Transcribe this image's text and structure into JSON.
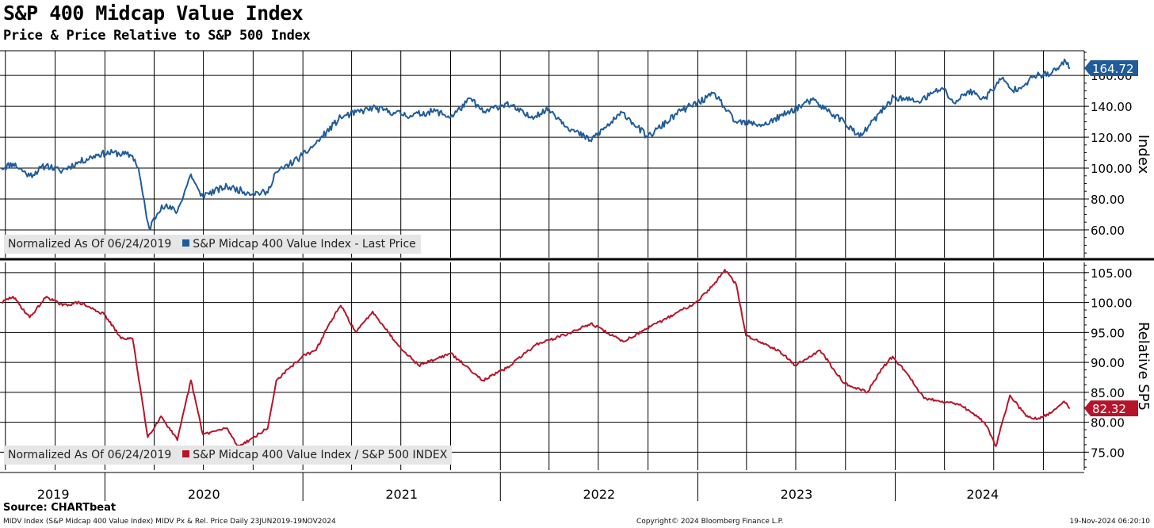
{
  "header": {
    "title": "S&P 400 Midcap Value Index",
    "subtitle": "Price & Price Relative to S&P 500 Index"
  },
  "footer": {
    "source": "Source: CHARTbeat",
    "left_note": "MIDV Index (S&P Midcap 400 Value Index) MIDV Px & Rel. Price  Daily 23JUN2019-19NOV2024",
    "center_note": "Copyright© 2024 Bloomberg Finance L.P.",
    "right_note": "19-Nov-2024 06:20:10"
  },
  "colors": {
    "price": "#1f5c99",
    "relative": "#b5152b",
    "grid": "#000000",
    "legend_bg": "#e6e6e6"
  },
  "chart_data": [
    {
      "type": "line",
      "ylabel": "Index",
      "ylim": [
        42,
        176
      ],
      "yticks": [
        "60.00",
        "80.00",
        "100.00",
        "120.00",
        "140.00",
        "160.00"
      ],
      "grid": true,
      "legend_note": "Normalized As Of 06/24/2019",
      "legend_position": "bottom-left",
      "last_value_label": "164.72",
      "x_axis": [
        "2019",
        "2020",
        "2021",
        "2022",
        "2023",
        "2024"
      ],
      "series": [
        {
          "name": "S&P Midcap 400 Value Index - Last Price",
          "points": [
            [
              "2019-06-24",
              100
            ],
            [
              "2019-07-15",
              103
            ],
            [
              "2019-08-15",
              95
            ],
            [
              "2019-09-15",
              102
            ],
            [
              "2019-10-10",
              98
            ],
            [
              "2019-11-15",
              104
            ],
            [
              "2019-12-20",
              109
            ],
            [
              "2020-01-17",
              110
            ],
            [
              "2020-02-21",
              108
            ],
            [
              "2020-03-03",
              100
            ],
            [
              "2020-03-18",
              68
            ],
            [
              "2020-03-23",
              61
            ],
            [
              "2020-04-15",
              76
            ],
            [
              "2020-05-14",
              72
            ],
            [
              "2020-06-08",
              96
            ],
            [
              "2020-06-26",
              82
            ],
            [
              "2020-08-14",
              88
            ],
            [
              "2020-09-23",
              84
            ],
            [
              "2020-10-28",
              84
            ],
            [
              "2020-11-09",
              96
            ],
            [
              "2020-12-31",
              108
            ],
            [
              "2021-01-25",
              116
            ],
            [
              "2021-03-12",
              133
            ],
            [
              "2021-05-10",
              139
            ],
            [
              "2021-06-18",
              136
            ],
            [
              "2021-07-19",
              134
            ],
            [
              "2021-09-03",
              137
            ],
            [
              "2021-10-01",
              133
            ],
            [
              "2021-11-08",
              145
            ],
            [
              "2021-11-30",
              136
            ],
            [
              "2022-01-12",
              142
            ],
            [
              "2022-02-24",
              133
            ],
            [
              "2022-04-01",
              138
            ],
            [
              "2022-05-12",
              125
            ],
            [
              "2022-06-16",
              118
            ],
            [
              "2022-08-16",
              136
            ],
            [
              "2022-09-30",
              120
            ],
            [
              "2022-11-30",
              137
            ],
            [
              "2023-02-02",
              148
            ],
            [
              "2023-03-10",
              130
            ],
            [
              "2023-05-04",
              128
            ],
            [
              "2023-07-31",
              144
            ],
            [
              "2023-09-29",
              130
            ],
            [
              "2023-10-27",
              120
            ],
            [
              "2023-12-29",
              146
            ],
            [
              "2024-02-13",
              143
            ],
            [
              "2024-03-28",
              152
            ],
            [
              "2024-04-19",
              142
            ],
            [
              "2024-05-15",
              150
            ],
            [
              "2024-06-14",
              145
            ],
            [
              "2024-07-16",
              158
            ],
            [
              "2024-08-05",
              150
            ],
            [
              "2024-09-19",
              160
            ],
            [
              "2024-10-15",
              161
            ],
            [
              "2024-11-11",
              169
            ],
            [
              "2024-11-19",
              164.72
            ]
          ]
        }
      ]
    },
    {
      "type": "line",
      "ylabel": "Relative SP5",
      "ylim": [
        72,
        106.7
      ],
      "yticks": [
        "75.00",
        "80.00",
        "85.00",
        "90.00",
        "95.00",
        "100.00",
        "105.00"
      ],
      "grid": true,
      "legend_note": "Normalized As Of 06/24/2019",
      "legend_position": "bottom-left",
      "last_value_label": "82.32",
      "x_axis": [
        "2019",
        "2020",
        "2021",
        "2022",
        "2023",
        "2024"
      ],
      "series": [
        {
          "name": "S&P Midcap 400 Value Index / S&P 500 INDEX",
          "points": [
            [
              "2019-06-24",
              100
            ],
            [
              "2019-07-15",
              101
            ],
            [
              "2019-08-15",
              97.5
            ],
            [
              "2019-09-15",
              101
            ],
            [
              "2019-10-15",
              99.5
            ],
            [
              "2019-11-15",
              100
            ],
            [
              "2019-12-31",
              98
            ],
            [
              "2020-01-31",
              94
            ],
            [
              "2020-02-21",
              94
            ],
            [
              "2020-03-06",
              86
            ],
            [
              "2020-03-20",
              77.5
            ],
            [
              "2020-04-14",
              81
            ],
            [
              "2020-05-14",
              77
            ],
            [
              "2020-06-08",
              87
            ],
            [
              "2020-06-30",
              78
            ],
            [
              "2020-08-14",
              79
            ],
            [
              "2020-09-02",
              76
            ],
            [
              "2020-09-24",
              77
            ],
            [
              "2020-10-28",
              79
            ],
            [
              "2020-11-13",
              87
            ],
            [
              "2020-12-31",
              91
            ],
            [
              "2021-01-25",
              92
            ],
            [
              "2021-02-16",
              96
            ],
            [
              "2021-03-12",
              99.5
            ],
            [
              "2021-04-09",
              95
            ],
            [
              "2021-05-10",
              98.5
            ],
            [
              "2021-06-25",
              93
            ],
            [
              "2021-08-03",
              89.5
            ],
            [
              "2021-10-01",
              91.5
            ],
            [
              "2021-11-30",
              87
            ],
            [
              "2022-01-12",
              89
            ],
            [
              "2022-03-08",
              93
            ],
            [
              "2022-05-13",
              95
            ],
            [
              "2022-06-17",
              96.5
            ],
            [
              "2022-08-16",
              93.5
            ],
            [
              "2022-10-28",
              97
            ],
            [
              "2022-12-28",
              100
            ],
            [
              "2023-01-31",
              103
            ],
            [
              "2023-02-20",
              105.5
            ],
            [
              "2023-03-13",
              103
            ],
            [
              "2023-03-31",
              94.5
            ],
            [
              "2023-05-31",
              92
            ],
            [
              "2023-06-30",
              89.5
            ],
            [
              "2023-08-15",
              92
            ],
            [
              "2023-09-29",
              86.5
            ],
            [
              "2023-11-10",
              85
            ],
            [
              "2023-12-08",
              89
            ],
            [
              "2023-12-27",
              91
            ],
            [
              "2024-01-24",
              88
            ],
            [
              "2024-02-23",
              84
            ],
            [
              "2024-03-28",
              83.5
            ],
            [
              "2024-04-30",
              83
            ],
            [
              "2024-06-14",
              80
            ],
            [
              "2024-07-05",
              76
            ],
            [
              "2024-07-31",
              84.5
            ],
            [
              "2024-08-30",
              81
            ],
            [
              "2024-09-20",
              80.5
            ],
            [
              "2024-10-14",
              81.5
            ],
            [
              "2024-11-08",
              83.5
            ],
            [
              "2024-11-19",
              82.32
            ]
          ]
        }
      ]
    }
  ]
}
